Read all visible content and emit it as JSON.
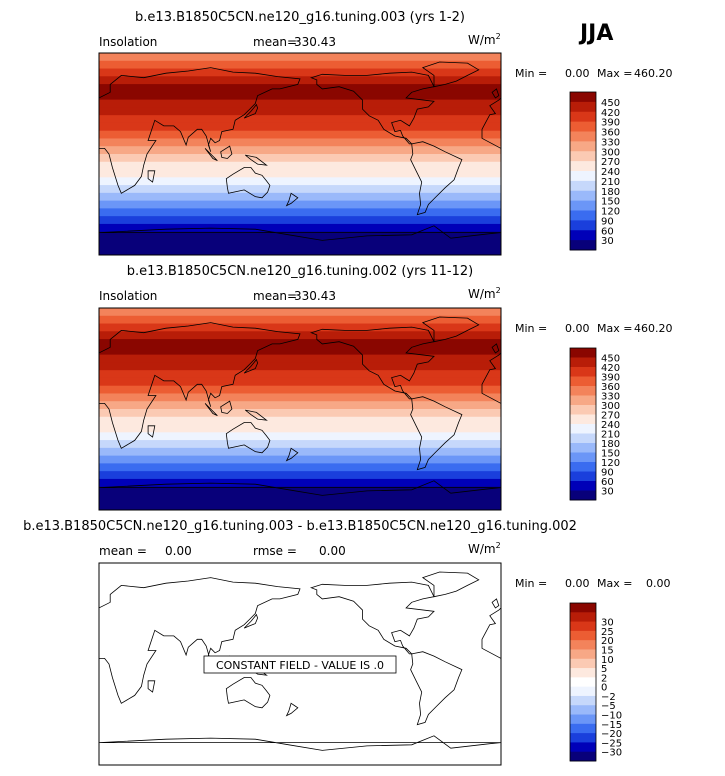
{
  "season": "JJA",
  "colors": {
    "full_scale": [
      "#08007a",
      "#0000b8",
      "#1a3fdc",
      "#3a6cf0",
      "#6b96f7",
      "#9ab9fa",
      "#c6d8fb",
      "#eef4ff",
      "#fde9df",
      "#fbcab3",
      "#f7a886",
      "#f3835b",
      "#ec5d33",
      "#d93718",
      "#b81d08",
      "#8a0600"
    ],
    "diff_scale": [
      "#08007a",
      "#0000b8",
      "#1a3fdc",
      "#3a6cf0",
      "#6b96f7",
      "#9ab9fa",
      "#c6d8fb",
      "#eef4ff",
      "#ffffff",
      "#fde9df",
      "#fbcab3",
      "#f7a886",
      "#f3835b",
      "#ec5d33",
      "#d93718",
      "#b81d08",
      "#8a0600"
    ]
  },
  "chart_data": [
    {
      "type": "heatmap",
      "title": "b.e13.B1850C5CN.ne120_g16.tuning.003 (yrs 1-2)",
      "variable": "Insolation",
      "mean_label": "mean=",
      "mean": "330.43",
      "units": "W/m",
      "units_exp": "2",
      "min_label": "Min =",
      "min": "0.00",
      "max_label": "Max =",
      "max": "460.20",
      "levels": [
        "30",
        "60",
        "90",
        "120",
        "150",
        "180",
        "210",
        "240",
        "270",
        "300",
        "330",
        "360",
        "390",
        "420",
        "450"
      ],
      "bands_north_to_south": [
        11,
        12,
        13,
        14,
        15,
        15,
        14,
        14,
        13,
        13,
        12,
        11,
        10,
        9,
        8,
        8,
        7,
        6,
        5,
        4,
        3,
        2,
        1,
        0,
        0,
        0
      ]
    },
    {
      "type": "heatmap",
      "title": "b.e13.B1850C5CN.ne120_g16.tuning.002 (yrs 11-12)",
      "variable": "Insolation",
      "mean_label": "mean=",
      "mean": "330.43",
      "units": "W/m",
      "units_exp": "2",
      "min_label": "Min =",
      "min": "0.00",
      "max_label": "Max =",
      "max": "460.20",
      "levels": [
        "30",
        "60",
        "90",
        "120",
        "150",
        "180",
        "210",
        "240",
        "270",
        "300",
        "330",
        "360",
        "390",
        "420",
        "450"
      ],
      "bands_north_to_south": [
        11,
        12,
        13,
        14,
        15,
        15,
        14,
        14,
        13,
        13,
        12,
        11,
        10,
        9,
        8,
        8,
        7,
        6,
        5,
        4,
        3,
        2,
        1,
        0,
        0,
        0
      ]
    },
    {
      "type": "heatmap",
      "title": "b.e13.B1850C5CN.ne120_g16.tuning.003 - b.e13.B1850C5CN.ne120_g16.tuning.002",
      "mean_label": "mean =",
      "mean": "0.00",
      "rmse_label": "rmse =",
      "rmse": "0.00",
      "units": "W/m",
      "units_exp": "2",
      "min_label": "Min =",
      "min": "0.00",
      "max_label": "Max =",
      "max": "0.00",
      "levels": [
        "−30",
        "−25",
        "−20",
        "−15",
        "−10",
        "−5",
        "−2",
        "0",
        "2",
        "5",
        "10",
        "15",
        "20",
        "25",
        "30"
      ],
      "constant_value": 0,
      "note": "CONSTANT FIELD - VALUE IS .0"
    }
  ]
}
